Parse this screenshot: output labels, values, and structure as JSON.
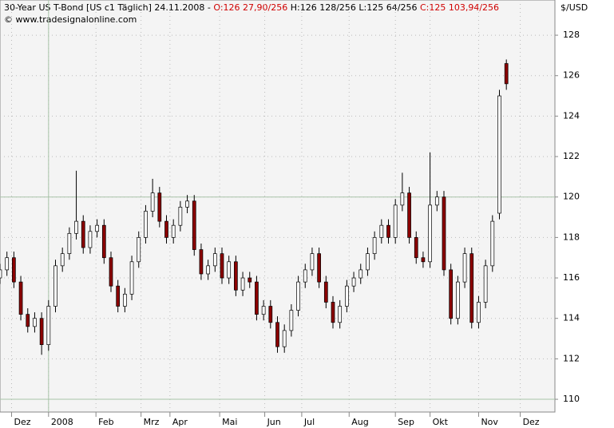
{
  "chart_data": {
    "type": "candlestick",
    "title": "30-Year US T-Bond [US c1  Täglich] 24.11.2008 -",
    "open_label": "O:126 27,90/256",
    "hl_label": "H:126 128/256 L:125 64/256",
    "close_label": "C:125 103,94/256",
    "copyright": "© www.tradesignalonline.com",
    "y_unit": "$/USD",
    "up_color": "#ffffff",
    "down_color": "#8b0000",
    "grid": true,
    "ylim": [
      109.37,
      129.74
    ],
    "yticks": [
      110,
      112,
      114,
      116,
      118,
      120,
      122,
      124,
      126,
      128
    ],
    "ref_y": [
      110,
      120
    ],
    "ref_x": [
      21
    ],
    "xlim": [
      0,
      240
    ],
    "xticks": [
      {
        "value": 5,
        "label": "Dez"
      },
      {
        "value": 21,
        "label": "2008"
      },
      {
        "value": 41.5,
        "label": "Feb"
      },
      {
        "value": 61,
        "label": "Mrz"
      },
      {
        "value": 73.5,
        "label": "Apr"
      },
      {
        "value": 95,
        "label": "Mai"
      },
      {
        "value": 114.5,
        "label": "Jun"
      },
      {
        "value": 130.5,
        "label": "Jul"
      },
      {
        "value": 151,
        "label": "Aug"
      },
      {
        "value": 171,
        "label": "Sep"
      },
      {
        "value": 186,
        "label": "Okt"
      },
      {
        "value": 207,
        "label": "Nov"
      },
      {
        "value": 225,
        "label": "Dez"
      }
    ],
    "x": [
      0,
      3,
      6,
      9,
      12,
      15,
      18,
      21,
      24,
      27,
      30,
      33,
      36,
      39,
      42,
      45,
      48,
      51,
      54,
      57,
      60,
      63,
      66,
      69,
      72,
      75,
      78,
      81,
      84,
      87,
      90,
      93,
      96,
      99,
      102,
      105,
      108,
      111,
      114,
      117,
      120,
      123,
      126,
      129,
      132,
      135,
      138,
      141,
      144,
      147,
      150,
      153,
      156,
      159,
      162,
      165,
      168,
      171,
      174,
      177,
      180,
      183,
      186,
      189,
      192,
      195,
      198,
      201,
      204,
      207,
      210,
      213,
      216,
      219
    ],
    "open": [
      116.0,
      116.4,
      117.0,
      115.8,
      114.2,
      113.6,
      114.0,
      112.7,
      114.6,
      116.6,
      117.2,
      118.2,
      118.8,
      117.5,
      118.3,
      118.6,
      117.0,
      115.6,
      114.6,
      115.2,
      116.8,
      118.0,
      119.3,
      120.2,
      118.8,
      118.0,
      118.6,
      119.5,
      119.8,
      117.4,
      116.2,
      116.6,
      117.2,
      116.0,
      116.8,
      115.4,
      116.0,
      115.8,
      114.2,
      114.6,
      113.8,
      112.6,
      113.4,
      114.4,
      115.8,
      116.4,
      117.2,
      115.8,
      114.8,
      113.8,
      114.6,
      115.6,
      116.0,
      116.4,
      117.2,
      118.0,
      118.6,
      118.0,
      119.6,
      120.2,
      118.0,
      117.0,
      116.8,
      119.6,
      120.0,
      116.4,
      114.0,
      115.8,
      117.2,
      113.8,
      114.8,
      116.6,
      119.2,
      126.6
    ],
    "high": [
      116.7,
      117.3,
      117.3,
      116.1,
      114.5,
      114.3,
      114.3,
      114.9,
      116.9,
      117.5,
      118.5,
      121.3,
      119.1,
      118.6,
      118.9,
      118.9,
      117.3,
      115.9,
      115.5,
      117.1,
      118.3,
      119.6,
      120.9,
      120.5,
      119.1,
      118.9,
      119.8,
      120.1,
      120.1,
      117.7,
      116.9,
      117.5,
      117.5,
      117.1,
      117.1,
      116.3,
      116.3,
      116.1,
      114.9,
      114.9,
      114.1,
      113.7,
      114.7,
      116.1,
      116.7,
      117.5,
      117.5,
      116.1,
      115.1,
      114.9,
      115.9,
      116.3,
      116.7,
      117.5,
      118.3,
      118.9,
      118.9,
      119.9,
      121.2,
      120.5,
      118.3,
      117.3,
      122.2,
      120.3,
      120.3,
      116.7,
      116.1,
      117.5,
      117.5,
      115.1,
      116.9,
      119.1,
      125.3,
      126.8
    ],
    "low": [
      115.7,
      116.1,
      115.5,
      113.9,
      113.3,
      113.3,
      112.2,
      112.4,
      114.3,
      116.3,
      116.9,
      117.9,
      117.2,
      117.2,
      118.0,
      116.7,
      115.3,
      114.3,
      114.3,
      114.9,
      116.5,
      117.7,
      119.0,
      118.5,
      117.7,
      117.7,
      118.3,
      119.2,
      117.1,
      115.9,
      115.9,
      116.3,
      115.7,
      115.7,
      115.1,
      115.1,
      115.5,
      113.9,
      113.9,
      113.5,
      112.3,
      112.3,
      113.1,
      114.1,
      115.5,
      116.1,
      115.5,
      114.5,
      113.5,
      113.5,
      114.3,
      115.3,
      115.7,
      116.1,
      116.9,
      117.7,
      117.7,
      117.7,
      119.3,
      117.7,
      116.7,
      116.5,
      116.5,
      119.3,
      116.1,
      113.7,
      113.7,
      115.5,
      113.5,
      113.5,
      114.5,
      116.3,
      118.9,
      125.3
    ],
    "close": [
      116.4,
      117.0,
      115.8,
      114.2,
      113.6,
      114.0,
      112.7,
      114.6,
      116.6,
      117.2,
      118.2,
      118.8,
      117.5,
      118.3,
      118.6,
      117.0,
      115.6,
      114.6,
      115.2,
      116.8,
      118.0,
      119.3,
      120.2,
      118.8,
      118.0,
      118.6,
      119.5,
      119.8,
      117.4,
      116.2,
      116.6,
      117.2,
      116.0,
      116.8,
      115.4,
      116.0,
      115.8,
      114.2,
      114.6,
      113.8,
      112.6,
      113.4,
      114.4,
      115.8,
      116.4,
      117.2,
      115.8,
      114.8,
      113.8,
      114.6,
      115.6,
      116.0,
      116.4,
      117.2,
      118.0,
      118.6,
      118.0,
      119.6,
      120.2,
      118.0,
      117.0,
      116.8,
      119.6,
      120.0,
      116.4,
      114.0,
      115.8,
      117.2,
      113.8,
      114.8,
      116.6,
      118.8,
      125.0,
      125.6
    ]
  }
}
